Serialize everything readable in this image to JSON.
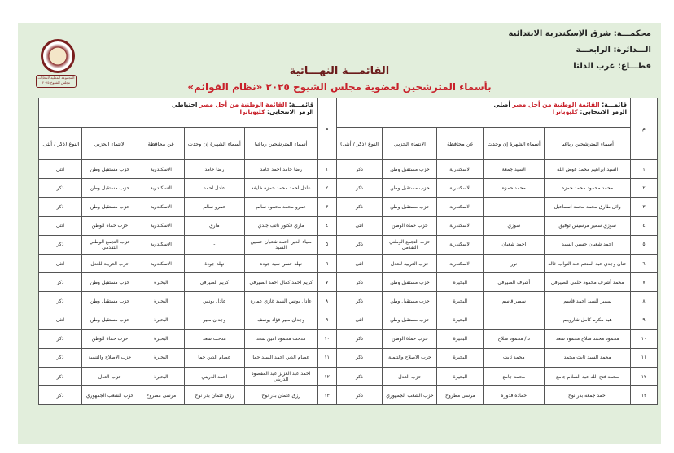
{
  "header": {
    "court": "محكمـــة: شرق الإسكندرية الابتدائية",
    "district": "الـــدائرة: الرابعـــة",
    "sector": "قطـــاع: غرب الدلتا",
    "badge": "المجموعة المحلية لانتخابات مجلس الشيوخ ٢٠٢٥"
  },
  "title": "القائمـــة النهـــائية",
  "subtitle": "بأسماء المترشحين لعضوية مجلس الشيوخ ٢٠٢٥ «نظام القوائم»",
  "num_header": "م",
  "columns": [
    "أسماء المترشحين رباعيا",
    "أسماء الشهرة إن وجدت",
    "عن محافظة",
    "الانتماء الحزبي",
    "النوع (ذكر / أنثى)"
  ],
  "primary": {
    "list_label": "قائمـــة:",
    "list_name": "القائمة الوطنية من أجل مصر",
    "type": "أصلي",
    "symbol_label": "الرمز الانتخابي:",
    "symbol": "كليوباترا",
    "rows": [
      [
        "١",
        "السيد ابراهيم محمد عوض الله",
        "السيد جمعة",
        "الاسكندرية",
        "حزب مستقبل وطن",
        "ذكر"
      ],
      [
        "٢",
        "محمد محمود محمد حمزه",
        "محمد حمزه",
        "الاسكندرية",
        "حزب مستقبل وطن",
        "ذكر"
      ],
      [
        "٣",
        "وائل طارق محمد محمد اسماعيل",
        "-",
        "الاسكندرية",
        "حزب مستقبل وطن",
        "ذكر"
      ],
      [
        "٤",
        "سوزي سمير مرسيس توفيق",
        "سوزي",
        "الاسكندرية",
        "حزب حماة الوطن",
        "انثى"
      ],
      [
        "٥",
        "احمد شعبان حسين السيد",
        "احمد شعبان",
        "الاسكندرية",
        "حزب التجمع الوطني التقدمي",
        "ذكر"
      ],
      [
        "٦",
        "حنان وجدي عبد المنعم عبد التواب خالد",
        "نور",
        "الاسكندرية",
        "حزب العربية للعدل",
        "انثى"
      ],
      [
        "٧",
        "محمد أشرف محمود حلمي الصيرفي",
        "أشرف الصيرفي",
        "البحيرة",
        "حزب مستقبل وطن",
        "ذكر"
      ],
      [
        "٨",
        "سمير السيد احمد قاسم",
        "سمير قاسم",
        "البحيرة",
        "حزب مستقبل وطن",
        "ذكر"
      ],
      [
        "٩",
        "هبه مكرم كامل شاروبيم",
        "-",
        "البحيرة",
        "حزب مستقبل وطن",
        "انثى"
      ],
      [
        "١٠",
        "محمود محمد صلاح محمود سعد",
        "د / محمود صلاح",
        "البحيرة",
        "حزب حماة الوطن",
        "ذكر"
      ],
      [
        "١١",
        "محمد السيد ثابت محمد",
        "محمد ثابت",
        "البحيرة",
        "حزب الاصلاح والتنمية",
        "ذكر"
      ],
      [
        "١٢",
        "محمد فتح الله عبد السلام جامع",
        "محمد جامع",
        "البحيرة",
        "حزب العدل",
        "ذكر"
      ],
      [
        "١٣",
        "احمد جمعه بدر نوح",
        "حماده قدوره",
        "مرسى مطروح",
        "حزب الشعب الجمهوري",
        "ذكر"
      ]
    ]
  },
  "reserve": {
    "list_label": "قائمـــة:",
    "list_name": "القائمة الوطنية من أجل مصر",
    "type": "احتياطي",
    "symbol_label": "الرمز الانتخابي:",
    "symbol": "كليوباترا",
    "rows": [
      [
        "١",
        "رضا حامد احمد حامد",
        "رضا حامد",
        "الاسكندرية",
        "حزب مستقبل وطن",
        "انثى"
      ],
      [
        "٢",
        "عادل احمد محمد حمزه خليفه",
        "عادل احمد",
        "الاسكندرية",
        "حزب مستقبل وطن",
        "ذكر"
      ],
      [
        "٣",
        "عمرو محمد محمود سالم",
        "عمرو سالم",
        "الاسكندرية",
        "حزب مستقبل وطن",
        "ذكر"
      ],
      [
        "٤",
        "ماري فكتور نائف جندي",
        "ماري",
        "الاسكندرية",
        "حزب حماة الوطن",
        "انثى"
      ],
      [
        "٥",
        "ضياء الدين احمد شعبان حسين السيد",
        "-",
        "الاسكندرية",
        "حزب التجمع الوطني التقدمي",
        "ذكر"
      ],
      [
        "٦",
        "نهله حسن سيد جوده",
        "نهلة جودة",
        "الاسكندرية",
        "حزب العربية للعدل",
        "انثى"
      ],
      [
        "٧",
        "كريم احمد كمال احمد الصيرفي",
        "كريم الصيرفي",
        "البحيرة",
        "حزب مستقبل وطن",
        "ذكر"
      ],
      [
        "٨",
        "عادل يونس السيد غازي عماره",
        "عادل يونس",
        "البحيرة",
        "حزب مستقبل وطن",
        "ذكر"
      ],
      [
        "٩",
        "وجدان منير فؤاد يوسف",
        "وجدان منير",
        "البحيرة",
        "حزب مستقبل وطن",
        "انثى"
      ],
      [
        "١٠",
        "مدحت محمود امين سعد",
        "مدحت سعد",
        "البحيرة",
        "حزب حماة الوطن",
        "ذكر"
      ],
      [
        "١١",
        "عصام الدين احمد السيد حما",
        "عصام الدين حما",
        "البحيرة",
        "حزب الاصلاح والتنمية",
        "ذكر"
      ],
      [
        "١٢",
        "احمد عبد العزيز عبد المقصود الدريني",
        "احمد الدريني",
        "البحيرة",
        "حزب العدل",
        "ذكر"
      ],
      [
        "١٣",
        "رزق عثمان بدر نوح",
        "رزق عثمان بدر نوح",
        "مرسى مطروح",
        "حزب الشعب الجمهوري",
        "ذكر"
      ]
    ]
  },
  "colors": {
    "page": "#e2eedc",
    "accent": "#c8202a"
  }
}
